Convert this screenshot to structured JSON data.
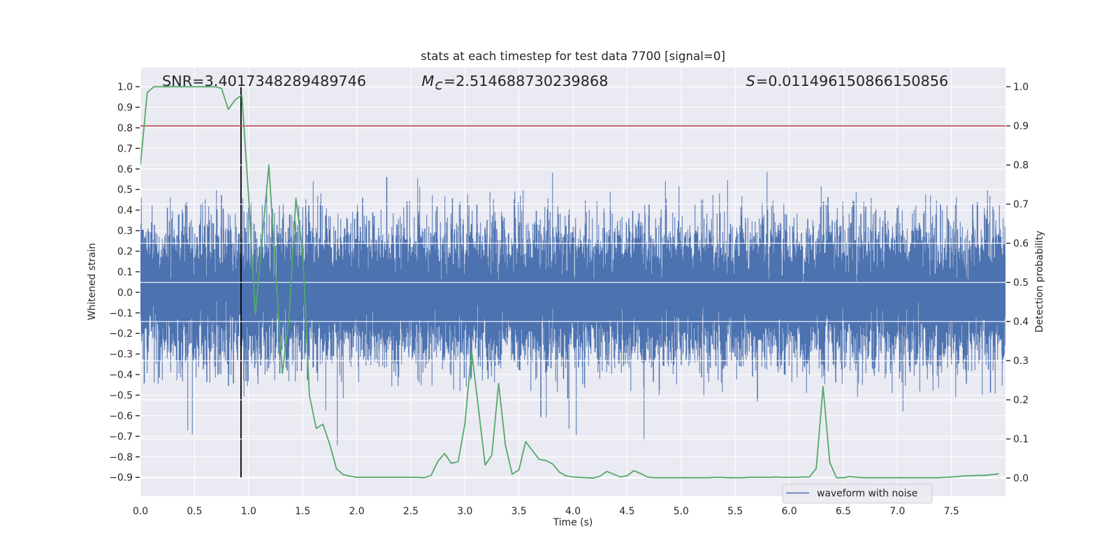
{
  "chart_data": {
    "type": "line",
    "title": "stats at each timestep for test data 7700 [signal=0]",
    "xlabel": "Time (s)",
    "ylabel": "Whitened strain",
    "ylabel_right": "Detection probability",
    "xlim": [
      0,
      8
    ],
    "ylim": [
      -0.991,
      1.093
    ],
    "ylim_right": [
      -0.046,
      1.049
    ],
    "xticks": [
      0.0,
      0.5,
      1.0,
      1.5,
      2.0,
      2.5,
      3.0,
      3.5,
      4.0,
      4.5,
      5.0,
      5.5,
      6.0,
      6.5,
      7.0,
      7.5
    ],
    "xtick_labels": [
      "0.0",
      "0.5",
      "1.0",
      "1.5",
      "2.0",
      "2.5",
      "3.0",
      "3.5",
      "4.0",
      "4.5",
      "5.0",
      "5.5",
      "6.0",
      "6.5",
      "7.0",
      "7.5"
    ],
    "yticks": [
      1.0,
      0.9,
      0.8,
      0.7,
      0.6,
      0.5,
      0.4,
      0.3,
      0.2,
      0.1,
      0.0,
      -0.1,
      -0.2,
      -0.3,
      -0.4,
      -0.5,
      -0.6,
      -0.7,
      -0.8,
      -0.9
    ],
    "ytick_labels": [
      "1.0",
      "0.9",
      "0.8",
      "0.7",
      "0.6",
      "0.5",
      "0.4",
      "0.3",
      "0.2",
      "0.1",
      "0.0",
      "−0.1",
      "−0.2",
      "−0.3",
      "−0.4",
      "−0.5",
      "−0.6",
      "−0.7",
      "−0.8",
      "−0.9"
    ],
    "yticks_right": [
      1.0,
      0.9,
      0.8,
      0.7,
      0.6,
      0.5,
      0.4,
      0.3,
      0.2,
      0.1,
      0.0
    ],
    "ytick_labels_right": [
      "1.0",
      "0.9",
      "0.8",
      "0.7",
      "0.6",
      "0.5",
      "0.4",
      "0.3",
      "0.2",
      "0.1",
      "0.0"
    ],
    "grid": true,
    "background_color": "#eaeaf2",
    "legend": {
      "placement": "lower right",
      "entries": [
        "waveform with noise"
      ]
    },
    "series": [
      {
        "name": "waveform with noise",
        "axis": "left",
        "kind": "noise",
        "color": "#4c72b0"
      },
      {
        "axis": "right",
        "color": "#55a868",
        "x": [
          0,
          0.0625,
          0.125,
          0.1875,
          0.25,
          0.3125,
          0.375,
          0.4375,
          0.5,
          0.5625,
          0.625,
          0.6875,
          0.75,
          0.8125,
          0.875,
          0.9375,
          1,
          1.0625,
          1.125,
          1.1875,
          1.25,
          1.3125,
          1.375,
          1.4375,
          1.5,
          1.5625,
          1.625,
          1.6875,
          1.75,
          1.8125,
          1.875,
          1.9375,
          2,
          2.0625,
          2.125,
          2.1875,
          2.25,
          2.3125,
          2.375,
          2.4375,
          2.5,
          2.5625,
          2.625,
          2.6875,
          2.75,
          2.8125,
          2.875,
          2.9375,
          3,
          3.0625,
          3.125,
          3.1875,
          3.25,
          3.3125,
          3.375,
          3.4375,
          3.5,
          3.5625,
          3.625,
          3.6875,
          3.75,
          3.8125,
          3.875,
          3.9375,
          4,
          4.0625,
          4.125,
          4.1875,
          4.25,
          4.3125,
          4.375,
          4.4375,
          4.5,
          4.5625,
          4.625,
          4.6875,
          4.75,
          4.8125,
          4.875,
          4.9375,
          5,
          5.0625,
          5.125,
          5.1875,
          5.25,
          5.3125,
          5.375,
          5.4375,
          5.5,
          5.5625,
          5.625,
          5.6875,
          5.75,
          5.8125,
          5.875,
          5.9375,
          6,
          6.0625,
          6.125,
          6.1875,
          6.25,
          6.3125,
          6.375,
          6.4375,
          6.5,
          6.5625,
          6.625,
          6.6875,
          6.75,
          6.8125,
          6.875,
          6.9375,
          7,
          7.0625,
          7.125,
          7.1875,
          7.25,
          7.3125,
          7.375,
          7.4375,
          7.5,
          7.5625,
          7.625,
          7.6875,
          7.75,
          7.8125,
          7.875,
          7.9375
        ],
        "values": [
          0.8,
          0.985,
          1.0,
          1.0,
          1.0,
          1.0,
          1.0,
          1.0,
          1.0,
          1.0,
          1.0,
          1.0,
          0.996,
          0.942,
          0.966,
          0.979,
          0.72,
          0.418,
          0.61,
          0.8,
          0.53,
          0.268,
          0.414,
          0.715,
          0.581,
          0.212,
          0.127,
          0.138,
          0.087,
          0.024,
          0.009,
          0.005,
          0.002,
          0.002,
          0.002,
          0.002,
          0.002,
          0.002,
          0.002,
          0.002,
          0.002,
          0.002,
          0.001,
          0.007,
          0.043,
          0.063,
          0.038,
          0.042,
          0.138,
          0.325,
          0.18,
          0.033,
          0.059,
          0.242,
          0.084,
          0.01,
          0.021,
          0.093,
          0.07,
          0.048,
          0.045,
          0.036,
          0.015,
          0.006,
          0.003,
          0.002,
          0.001,
          0.0,
          0.005,
          0.017,
          0.01,
          0.003,
          0.006,
          0.019,
          0.012,
          0.003,
          0.001,
          0.001,
          0.001,
          0.001,
          0.001,
          0.001,
          0.001,
          0.001,
          0.001,
          0.002,
          0.002,
          0.001,
          0.001,
          0.001,
          0.002,
          0.002,
          0.002,
          0.002,
          0.003,
          0.002,
          0.002,
          0.002,
          0.003,
          0.003,
          0.025,
          0.234,
          0.04,
          0.001,
          0.001,
          0.004,
          0.002,
          0.001,
          0.001,
          0.001,
          0.001,
          0.001,
          0.001,
          0.001,
          0.001,
          0.001,
          0.001,
          0.001,
          0.001,
          0.002,
          0.003,
          0.004,
          0.006,
          0.006,
          0.007,
          0.007,
          0.009,
          0.011
        ]
      }
    ],
    "hlines": [
      {
        "axis": "right",
        "value": 0.9,
        "color": "#c44e52"
      }
    ],
    "vlines": [
      {
        "x": 0.93,
        "ymin": -0.9,
        "ymax": 1.0,
        "axis": "left",
        "color": "#000000"
      }
    ],
    "annotations": [
      {
        "x": 0.2,
        "y": 1.0,
        "italic": "",
        "sub": "",
        "text": "SNR=3.4017348289489746"
      },
      {
        "x": 2.6,
        "y": 1.0,
        "italic": "M",
        "sub": "c",
        "text": "=2.514688730239868"
      },
      {
        "x": 5.6,
        "y": 1.0,
        "italic": "S",
        "sub": "",
        "text": "=0.011496150866150856"
      }
    ]
  }
}
